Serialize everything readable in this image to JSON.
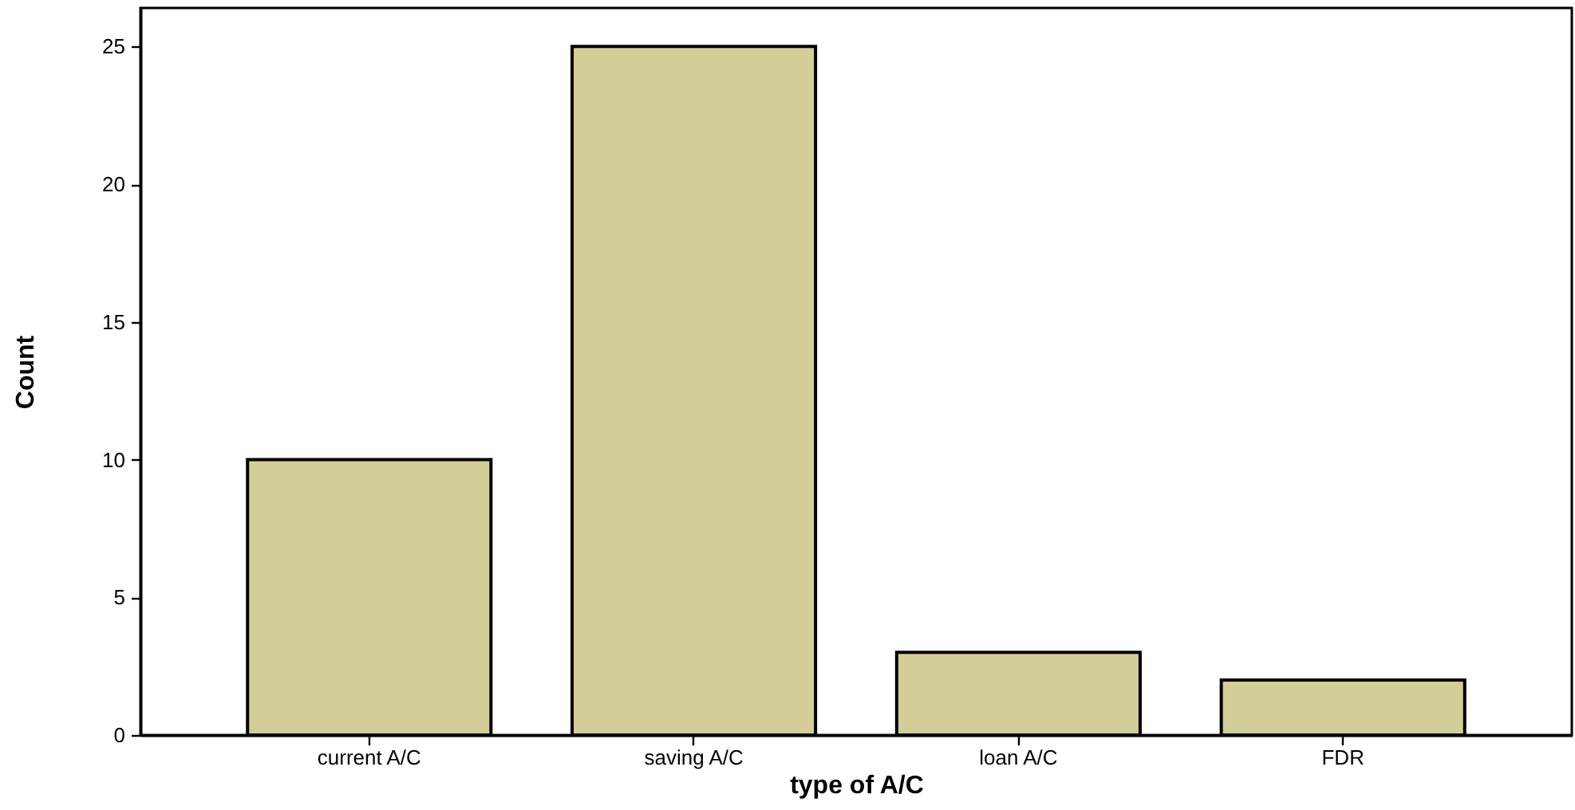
{
  "chart_data": {
    "type": "bar",
    "xlabel": "type of A/C",
    "ylabel": "Count",
    "categories": [
      "current A/C",
      "saving A/C",
      "loan A/C",
      "FDR"
    ],
    "values": [
      10,
      25,
      3,
      2
    ],
    "color": "#d3cd98",
    "ylim": [
      0,
      26.4
    ],
    "yticks": [
      0,
      5,
      10,
      15,
      20,
      25
    ],
    "grid": false
  }
}
